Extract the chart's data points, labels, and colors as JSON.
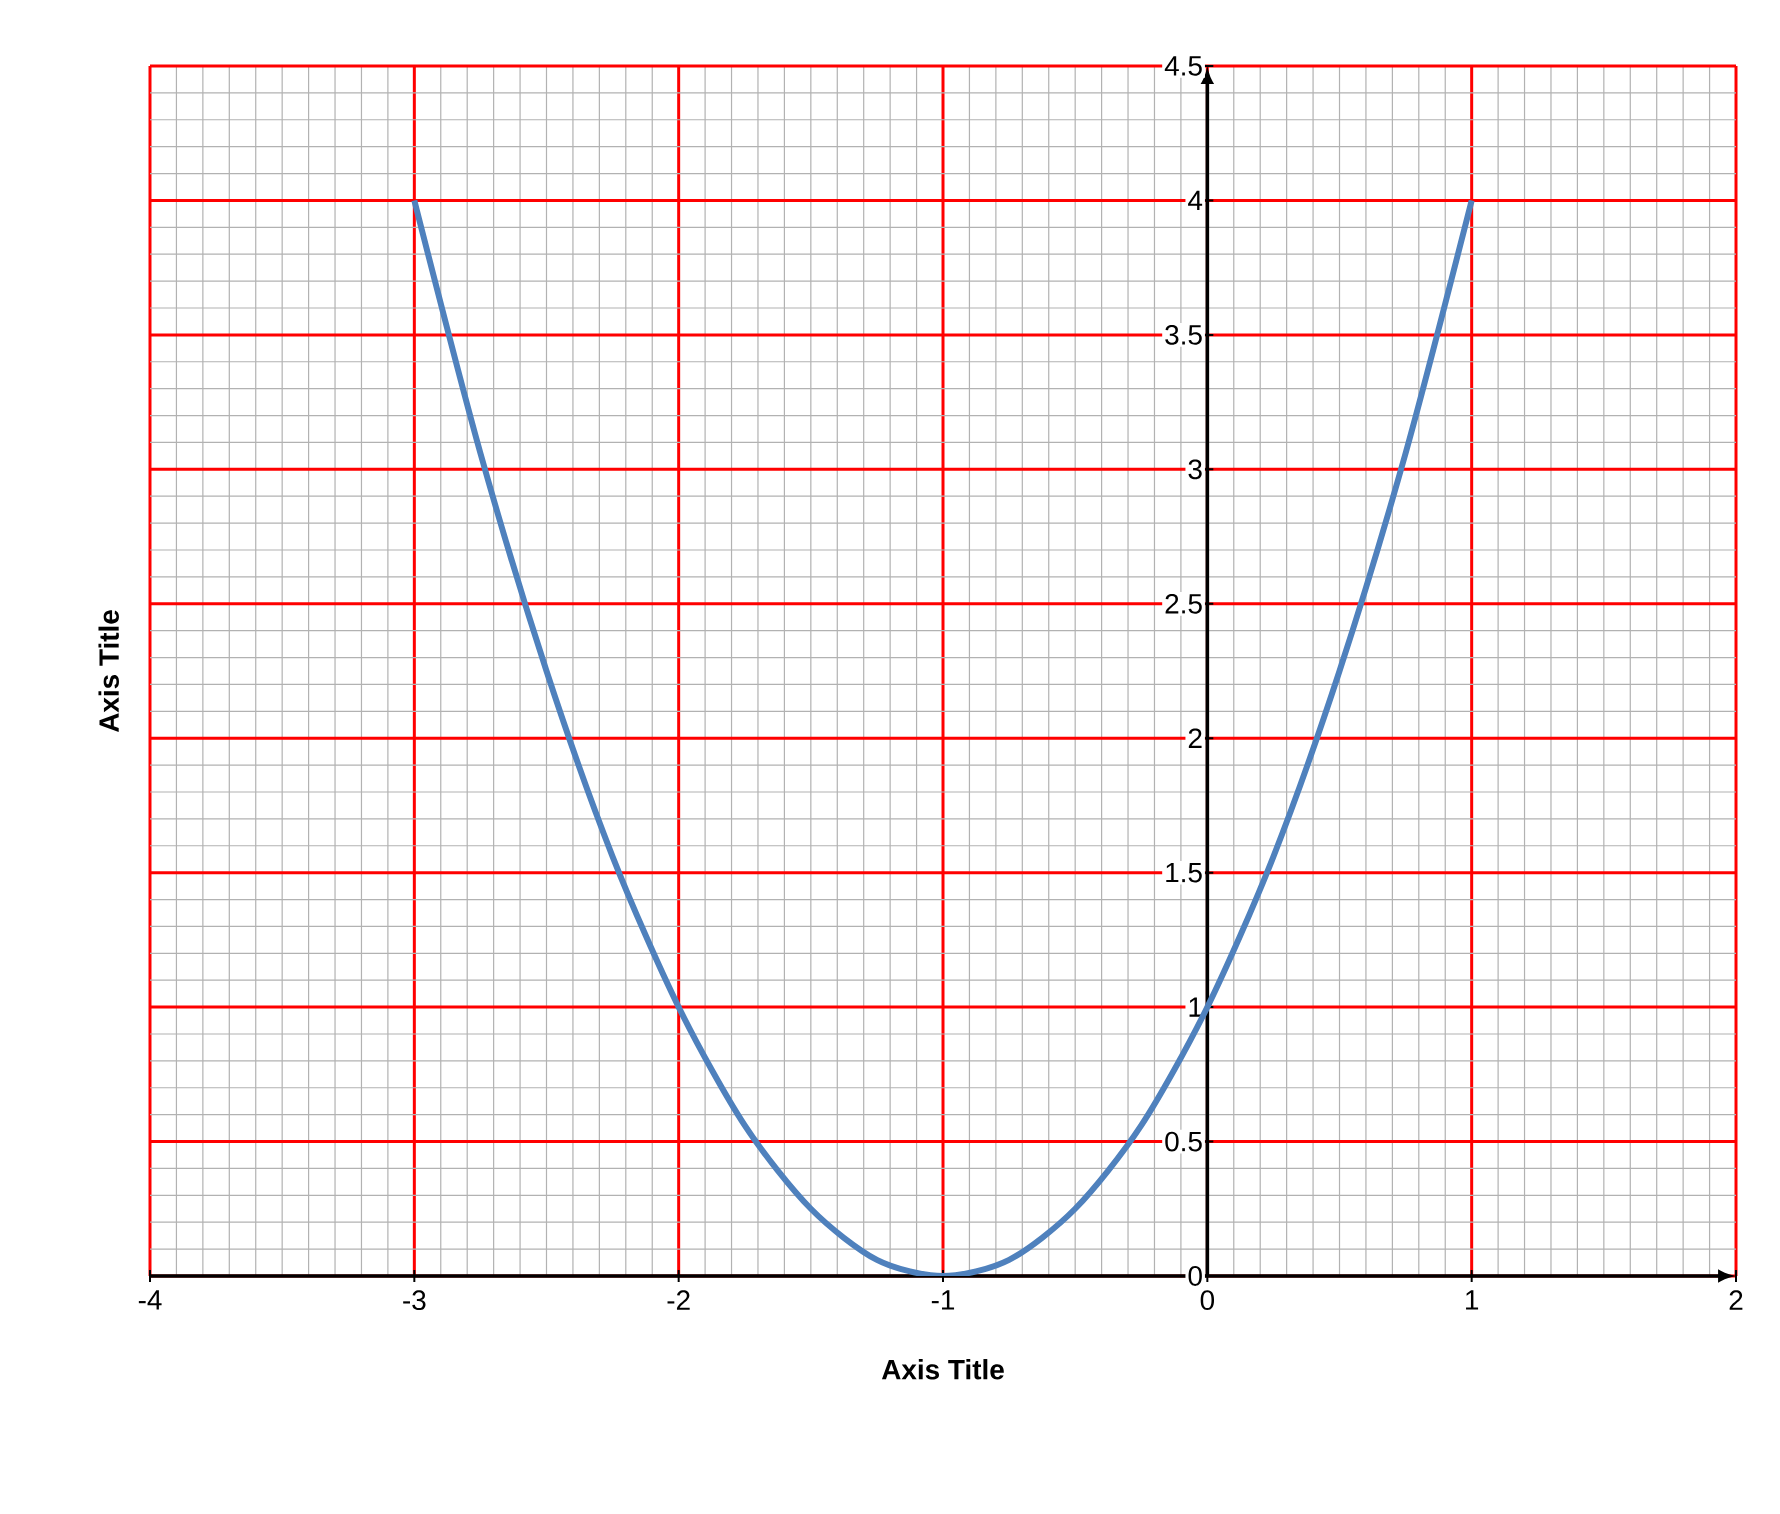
{
  "chart_data": {
    "type": "line",
    "xlabel": "Axis Title",
    "ylabel": "Axis Title",
    "x": [
      -3,
      -2.75,
      -2.5,
      -2.25,
      -2,
      -1.75,
      -1.5,
      -1.25,
      -1,
      -0.75,
      -0.5,
      -0.25,
      0,
      0.25,
      0.5,
      0.75,
      1
    ],
    "series": [
      {
        "color": "#4f81bd",
        "values": [
          4,
          3.06,
          2.25,
          1.56,
          1,
          0.56,
          0.25,
          0.06,
          0,
          0.06,
          0.25,
          0.56,
          1,
          1.56,
          2.25,
          3.06,
          4
        ]
      }
    ],
    "xlim": [
      -4,
      2
    ],
    "ylim": [
      0,
      4.5
    ],
    "xticks": [
      -4,
      -3,
      -2,
      -1,
      0,
      1,
      2
    ],
    "yticks": [
      0,
      0.5,
      1,
      1.5,
      2,
      2.5,
      3,
      3.5,
      4,
      4.5
    ],
    "grid": true,
    "marker": "none",
    "line_style": "solid"
  }
}
